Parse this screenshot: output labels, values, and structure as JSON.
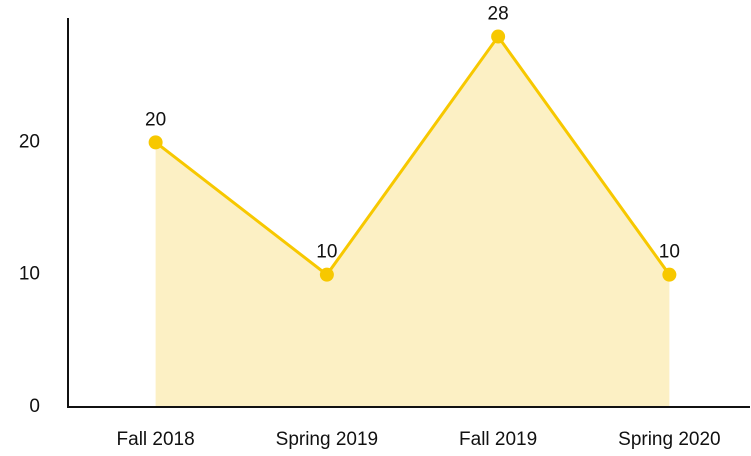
{
  "chart_data": {
    "type": "area",
    "categories": [
      "Fall 2018",
      "Spring 2019",
      "Fall 2019",
      "Spring 2020"
    ],
    "values": [
      20,
      10,
      28,
      10
    ],
    "color": "#f7c800",
    "fill": "#fcf0c4",
    "ylim": [
      0,
      29.4
    ],
    "yticks": [
      0,
      10,
      20
    ],
    "grid": false
  }
}
